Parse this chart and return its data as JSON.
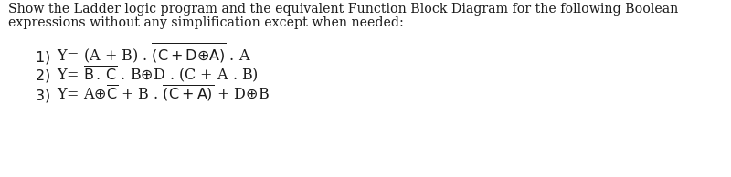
{
  "bg_color": "#ffffff",
  "text_color": "#1a1a1a",
  "header_line1": "Show the Ladder logic program and the equivalent Function Block Diagram for the following Boolean",
  "header_line2": "expressions without any simplification except when needed:",
  "eq1_num": "1)",
  "eq2_num": "2)",
  "eq3_num": "3)",
  "figsize": [
    8.0,
    1.94
  ],
  "dpi": 100,
  "header_fontsize": 10.2,
  "eq_fontsize": 11.5,
  "num_fontsize": 11.5
}
